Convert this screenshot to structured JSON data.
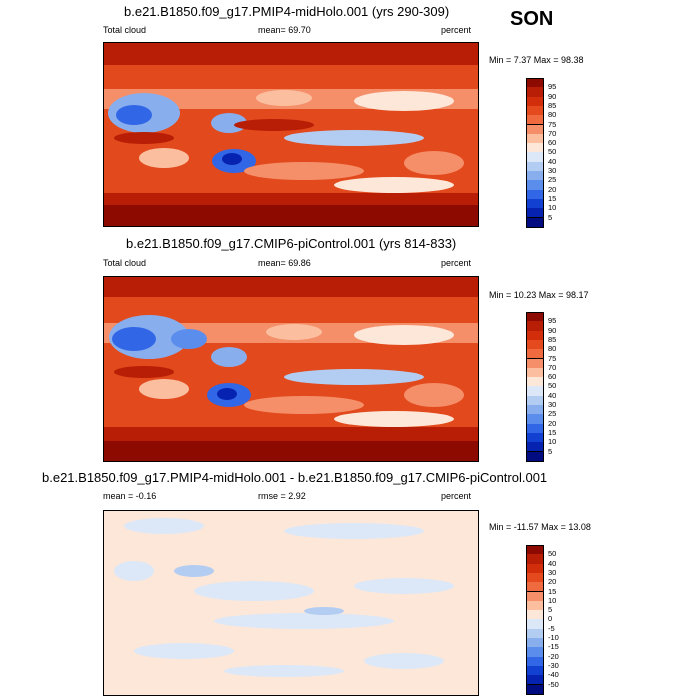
{
  "season": "SON",
  "panels": [
    {
      "title": "b.e21.B1850.f09_g17.PMIP4-midHolo.001 (yrs 290-309)",
      "left": "Total cloud",
      "stat": "mean=  69.70",
      "units": "percent",
      "minmax": "Min =  7.37 Max =  98.38",
      "colorbar": {
        "labels": [
          "95",
          "90",
          "85",
          "80",
          "75",
          "70",
          "60",
          "50",
          "40",
          "30",
          "25",
          "20",
          "15",
          "10",
          "5"
        ],
        "colors": [
          "#8c0a00",
          "#b81d05",
          "#d32e0c",
          "#e54a1f",
          "#ef6a3f",
          "#f58f6a",
          "#fbbfa0",
          "#fde7d9",
          "#dce8f7",
          "#b3cdf2",
          "#88aeee",
          "#5b8ded",
          "#3167e6",
          "#1241d2",
          "#0622b0",
          "#000c80"
        ]
      }
    },
    {
      "title": "b.e21.B1850.f09_g17.CMIP6-piControl.001 (yrs 814-833)",
      "left": "Total cloud",
      "stat": "mean=  69.86",
      "units": "percent",
      "minmax": "Min =  10.23 Max =  98.17",
      "colorbar": {
        "labels": [
          "95",
          "90",
          "85",
          "80",
          "75",
          "70",
          "60",
          "50",
          "40",
          "30",
          "25",
          "20",
          "15",
          "10",
          "5"
        ],
        "colors": [
          "#8c0a00",
          "#b81d05",
          "#d32e0c",
          "#e54a1f",
          "#ef6a3f",
          "#f58f6a",
          "#fbbfa0",
          "#fde7d9",
          "#dce8f7",
          "#b3cdf2",
          "#88aeee",
          "#5b8ded",
          "#3167e6",
          "#1241d2",
          "#0622b0",
          "#000c80"
        ]
      }
    },
    {
      "title": "b.e21.B1850.f09_g17.PMIP4-midHolo.001 - b.e21.B1850.f09_g17.CMIP6-piControl.001",
      "left": "mean =  -0.16",
      "stat": "rmse =   2.92",
      "units": "percent",
      "minmax": "Min = -11.57 Max =  13.08",
      "colorbar": {
        "labels": [
          "50",
          "40",
          "30",
          "20",
          "15",
          "10",
          "5",
          "0",
          "-5",
          "-10",
          "-15",
          "-20",
          "-30",
          "-40",
          "-50"
        ],
        "colors": [
          "#8c0a00",
          "#b81d05",
          "#d32e0c",
          "#e54a1f",
          "#ef6a3f",
          "#f58f6a",
          "#fbbfa0",
          "#fde7d9",
          "#dce8f7",
          "#b3cdf2",
          "#88aeee",
          "#5b8ded",
          "#3167e6",
          "#1241d2",
          "#0622b0",
          "#000c80"
        ]
      }
    }
  ]
}
